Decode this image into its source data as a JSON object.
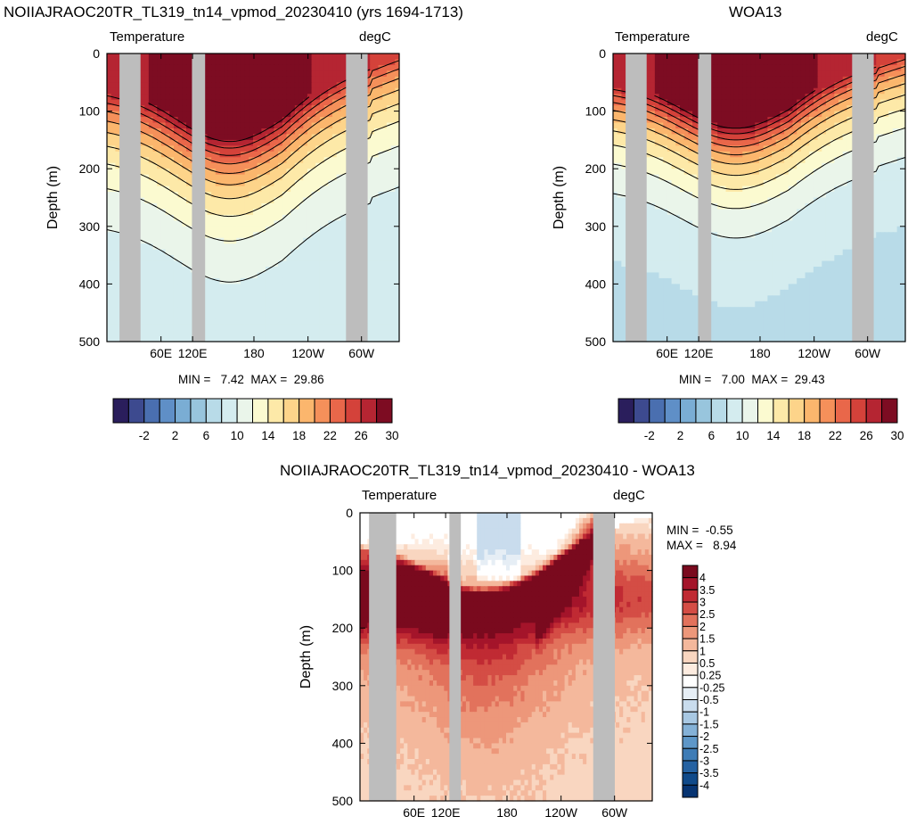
{
  "chart_data": [
    {
      "type": "heatmap",
      "title": "NOIIAJRAOC20TR_TL319_tn14_vpmod_20230410 (yrs 1694-1713)",
      "left_label": "Temperature",
      "right_label": "degC",
      "ylabel": "Depth (m)",
      "yticks": [
        "0",
        "100",
        "200",
        "300",
        "400",
        "500"
      ],
      "ylim": [
        0,
        500
      ],
      "xticks": [
        "60E",
        "120E",
        "180",
        "120W",
        "60W"
      ],
      "stats": "MIN =   7.42  MAX =  29.86",
      "colorbar": {
        "labels": [
          "-2",
          "2",
          "6",
          "10",
          "14",
          "18",
          "22",
          "26",
          "30"
        ],
        "levels": [
          -4,
          -2,
          0,
          2,
          4,
          6,
          8,
          10,
          12,
          14,
          16,
          18,
          20,
          22,
          24,
          26,
          28,
          30
        ],
        "colors": [
          "#2a1e5c",
          "#3d4a8f",
          "#4a6fb0",
          "#5f8fc7",
          "#7aadd4",
          "#98c5dd",
          "#b8dbe8",
          "#d4ecef",
          "#eaf5ea",
          "#fbfad0",
          "#fde9a8",
          "#fdd48a",
          "#fbb66d",
          "#f5905a",
          "#e9674a",
          "#d4423a",
          "#b52532",
          "#7d0c22"
        ],
        "orientation": "horizontal"
      }
    },
    {
      "type": "heatmap",
      "title": "WOA13",
      "left_label": "Temperature",
      "right_label": "degC",
      "ylabel": "Depth (m)",
      "yticks": [
        "0",
        "100",
        "200",
        "300",
        "400",
        "500"
      ],
      "ylim": [
        0,
        500
      ],
      "xticks": [
        "60E",
        "120E",
        "180",
        "120W",
        "60W"
      ],
      "stats": "MIN =   7.00  MAX =  29.43",
      "colorbar": {
        "labels": [
          "-2",
          "2",
          "6",
          "10",
          "14",
          "18",
          "22",
          "26",
          "30"
        ],
        "orientation": "horizontal"
      }
    },
    {
      "type": "heatmap",
      "title": "NOIIAJRAOC20TR_TL319_tn14_vpmod_20230410 - WOA13",
      "left_label": "Temperature",
      "right_label": "degC",
      "ylabel": "Depth (m)",
      "yticks": [
        "0",
        "100",
        "200",
        "300",
        "400",
        "500"
      ],
      "ylim": [
        0,
        500
      ],
      "xticks": [
        "60E",
        "120E",
        "180",
        "120W",
        "60W"
      ],
      "stats_min": "MIN =  -0.55",
      "stats_max": "MAX =   8.94",
      "colorbar": {
        "labels": [
          "4",
          "3.5",
          "3",
          "2.5",
          "2",
          "1.5",
          "1",
          "0.5",
          "0.25",
          "-0.25",
          "-0.5",
          "-1",
          "-1.5",
          "-2",
          "-2.5",
          "-3",
          "-3.5",
          "-4"
        ],
        "colors": [
          "#7a0a1e",
          "#a4142a",
          "#c02a33",
          "#d44d45",
          "#e2725c",
          "#ed977a",
          "#f4b89c",
          "#f9d6c0",
          "#fdece0",
          "#ffffff",
          "#e6eef5",
          "#c9dced",
          "#a8c8e3",
          "#84b1d7",
          "#5e97c8",
          "#3e7cb6",
          "#2562a2",
          "#104a8a",
          "#073472"
        ],
        "orientation": "vertical"
      }
    }
  ]
}
